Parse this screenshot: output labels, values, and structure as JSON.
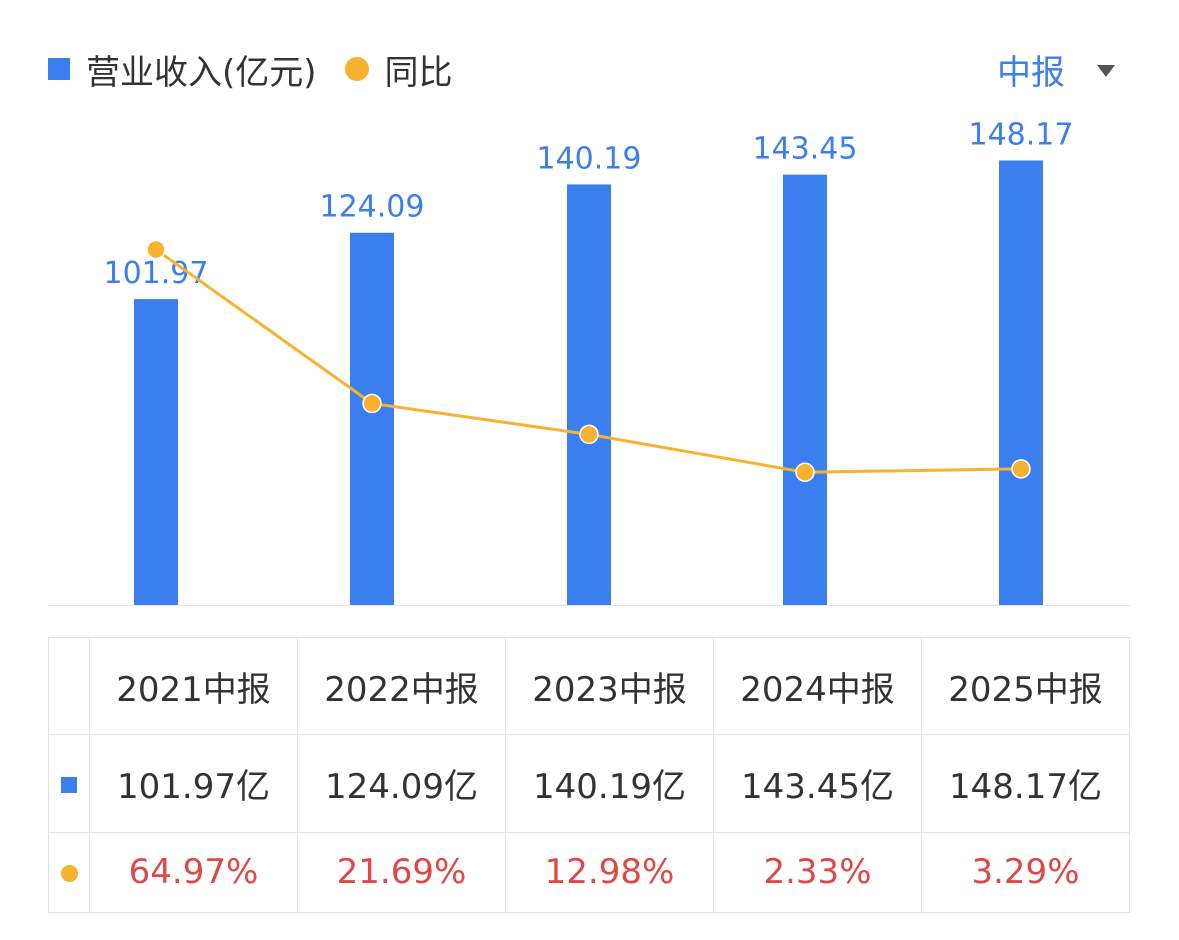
{
  "legend": {
    "revenue_label": "营业收入(亿元)",
    "yoy_label": "同比"
  },
  "period_selector": {
    "label": "中报"
  },
  "colors": {
    "bar": "#3B7FEE",
    "line": "#F7B230",
    "bar_label": "#3B7FEE",
    "pct_text": "#E04848"
  },
  "chart_data": {
    "type": "bar",
    "categories": [
      "2021中报",
      "2022中报",
      "2023中报",
      "2024中报",
      "2025中报"
    ],
    "series": [
      {
        "name": "营业收入(亿元)",
        "type": "bar",
        "values": [
          101.97,
          124.09,
          140.19,
          143.45,
          148.17
        ]
      },
      {
        "name": "同比",
        "type": "line",
        "values": [
          64.97,
          21.69,
          12.98,
          2.33,
          3.29
        ]
      }
    ],
    "bar_ylim": [
      0,
      160
    ],
    "line_ylim": [
      -35,
      100
    ],
    "grid": false,
    "legend_position": "top-left"
  },
  "table": {
    "headers": [
      "2021中报",
      "2022中报",
      "2023中报",
      "2024中报",
      "2025中报"
    ],
    "revenue": [
      "101.97亿",
      "124.09亿",
      "140.19亿",
      "143.45亿",
      "148.17亿"
    ],
    "yoy": [
      "64.97%",
      "21.69%",
      "12.98%",
      "2.33%",
      "3.29%"
    ]
  }
}
